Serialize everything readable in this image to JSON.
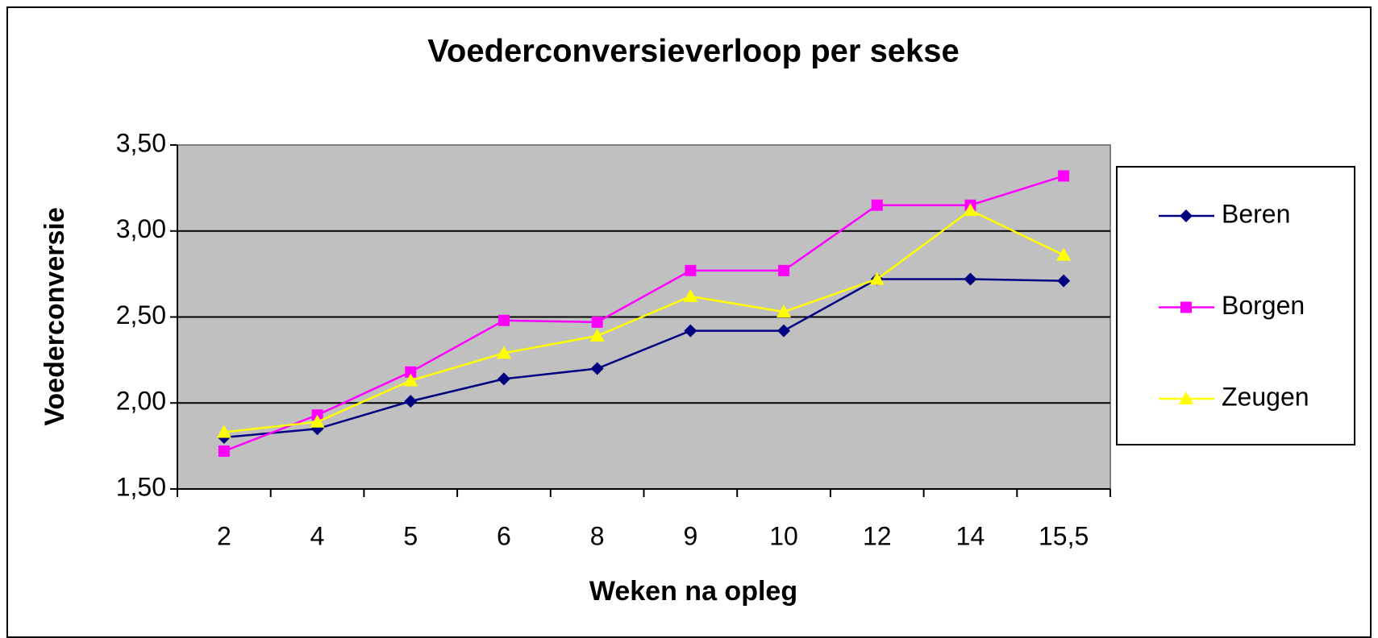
{
  "chart_data": {
    "type": "line",
    "title": "Voederconversieverloop per sekse",
    "x_label": "Weken na opleg",
    "y_label": "Voederconversie",
    "categories": [
      "2",
      "4",
      "5",
      "6",
      "8",
      "9",
      "10",
      "12",
      "14",
      "15,5"
    ],
    "series": [
      {
        "name": "Beren",
        "color": "#000080",
        "marker": "diamond",
        "values": [
          1.8,
          1.85,
          2.01,
          2.14,
          2.2,
          2.42,
          2.42,
          2.72,
          2.72,
          2.71
        ]
      },
      {
        "name": "Borgen",
        "color": "#ff00ff",
        "marker": "square",
        "values": [
          1.72,
          1.93,
          2.18,
          2.48,
          2.47,
          2.77,
          2.77,
          3.15,
          3.15,
          3.32
        ]
      },
      {
        "name": "Zeugen",
        "color": "#ffff00",
        "marker": "triangle",
        "values": [
          1.83,
          1.89,
          2.13,
          2.29,
          2.39,
          2.62,
          2.53,
          2.72,
          3.12,
          2.86
        ]
      }
    ],
    "ylim": [
      1.5,
      3.5
    ],
    "yticks": [
      {
        "value": 1.5,
        "label": "1,50"
      },
      {
        "value": 2.0,
        "label": "2,00"
      },
      {
        "value": 2.5,
        "label": "2,50"
      },
      {
        "value": 3.0,
        "label": "3,00"
      },
      {
        "value": 3.5,
        "label": "3,50"
      }
    ],
    "grid": true,
    "legend": "right"
  }
}
